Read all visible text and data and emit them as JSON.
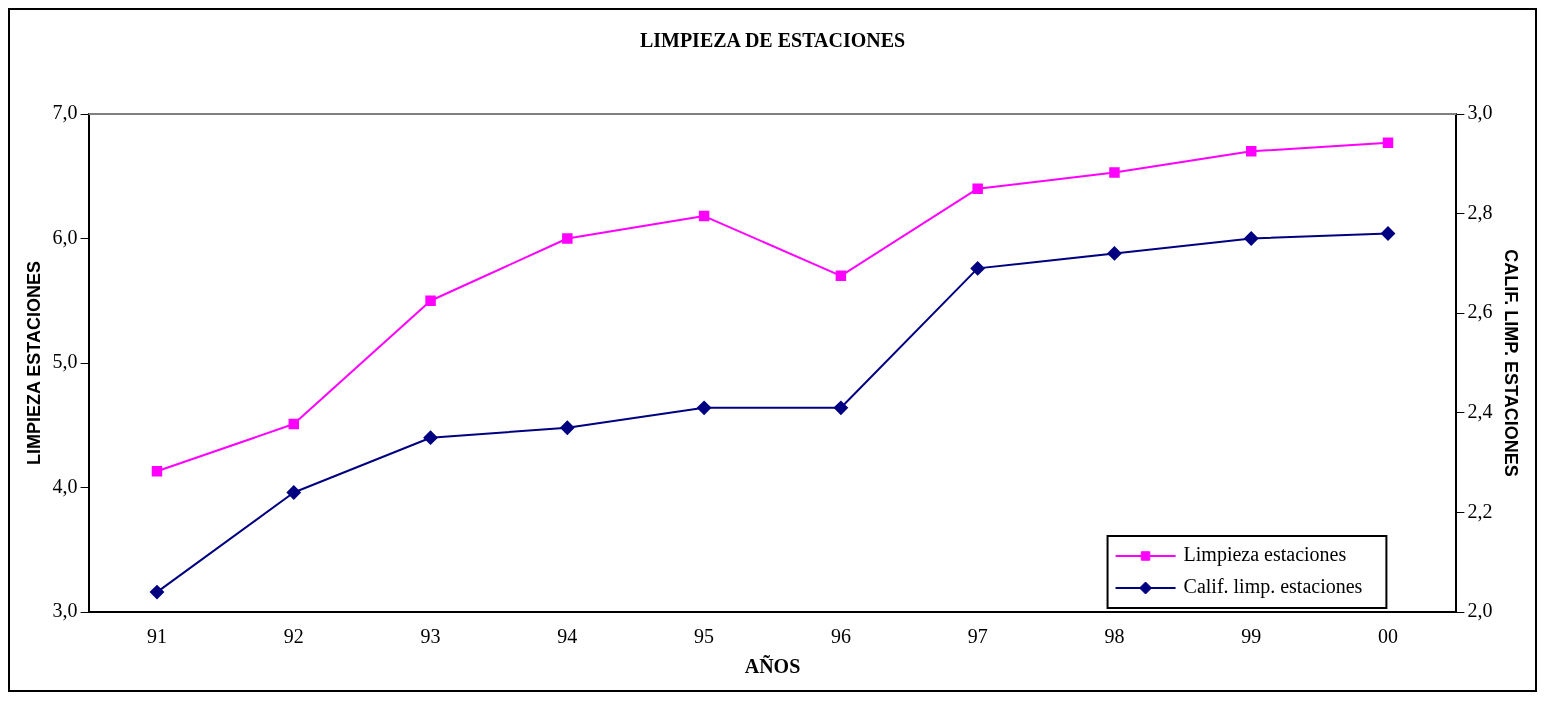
{
  "chart_data": {
    "type": "line",
    "title": "LIMPIEZA DE ESTACIONES",
    "xlabel": "AÑOS",
    "ylabel": "LIMPIEZA ESTACIONES",
    "y2label": "CALIF. LIMP. ESTACIONES",
    "categories": [
      "91",
      "92",
      "93",
      "94",
      "95",
      "96",
      "97",
      "98",
      "99",
      "00"
    ],
    "series": [
      {
        "name": "Limpieza estaciones",
        "color": "#ff00ff",
        "marker": "square",
        "values": [
          4.13,
          4.51,
          5.5,
          6.0,
          6.18,
          5.7,
          6.4,
          6.53,
          6.7,
          6.77
        ]
      },
      {
        "name": "Calif. limp. estaciones",
        "color": "#000080",
        "marker": "diamond",
        "axis": "y2",
        "values": [
          2.04,
          2.24,
          2.35,
          2.37,
          2.41,
          2.41,
          2.69,
          2.72,
          2.75,
          2.76
        ]
      }
    ],
    "ylim": [
      3,
      7
    ],
    "yticks": [
      {
        "value": 3,
        "label": "3,0"
      },
      {
        "value": 4,
        "label": "4,0"
      },
      {
        "value": 5,
        "label": "5,0"
      },
      {
        "value": 6,
        "label": "6,0"
      },
      {
        "value": 7,
        "label": "7,0"
      }
    ],
    "y2lim": [
      2,
      3
    ],
    "y2ticks": [
      {
        "value": 2,
        "label": "2,0"
      },
      {
        "value": 2.2,
        "label": "2,2"
      },
      {
        "value": 2.4,
        "label": "2,4"
      },
      {
        "value": 2.6,
        "label": "2,6"
      },
      {
        "value": 2.8,
        "label": "2,8"
      },
      {
        "value": 3,
        "label": "3,0"
      }
    ],
    "grid": false,
    "legend": "bottom right"
  }
}
